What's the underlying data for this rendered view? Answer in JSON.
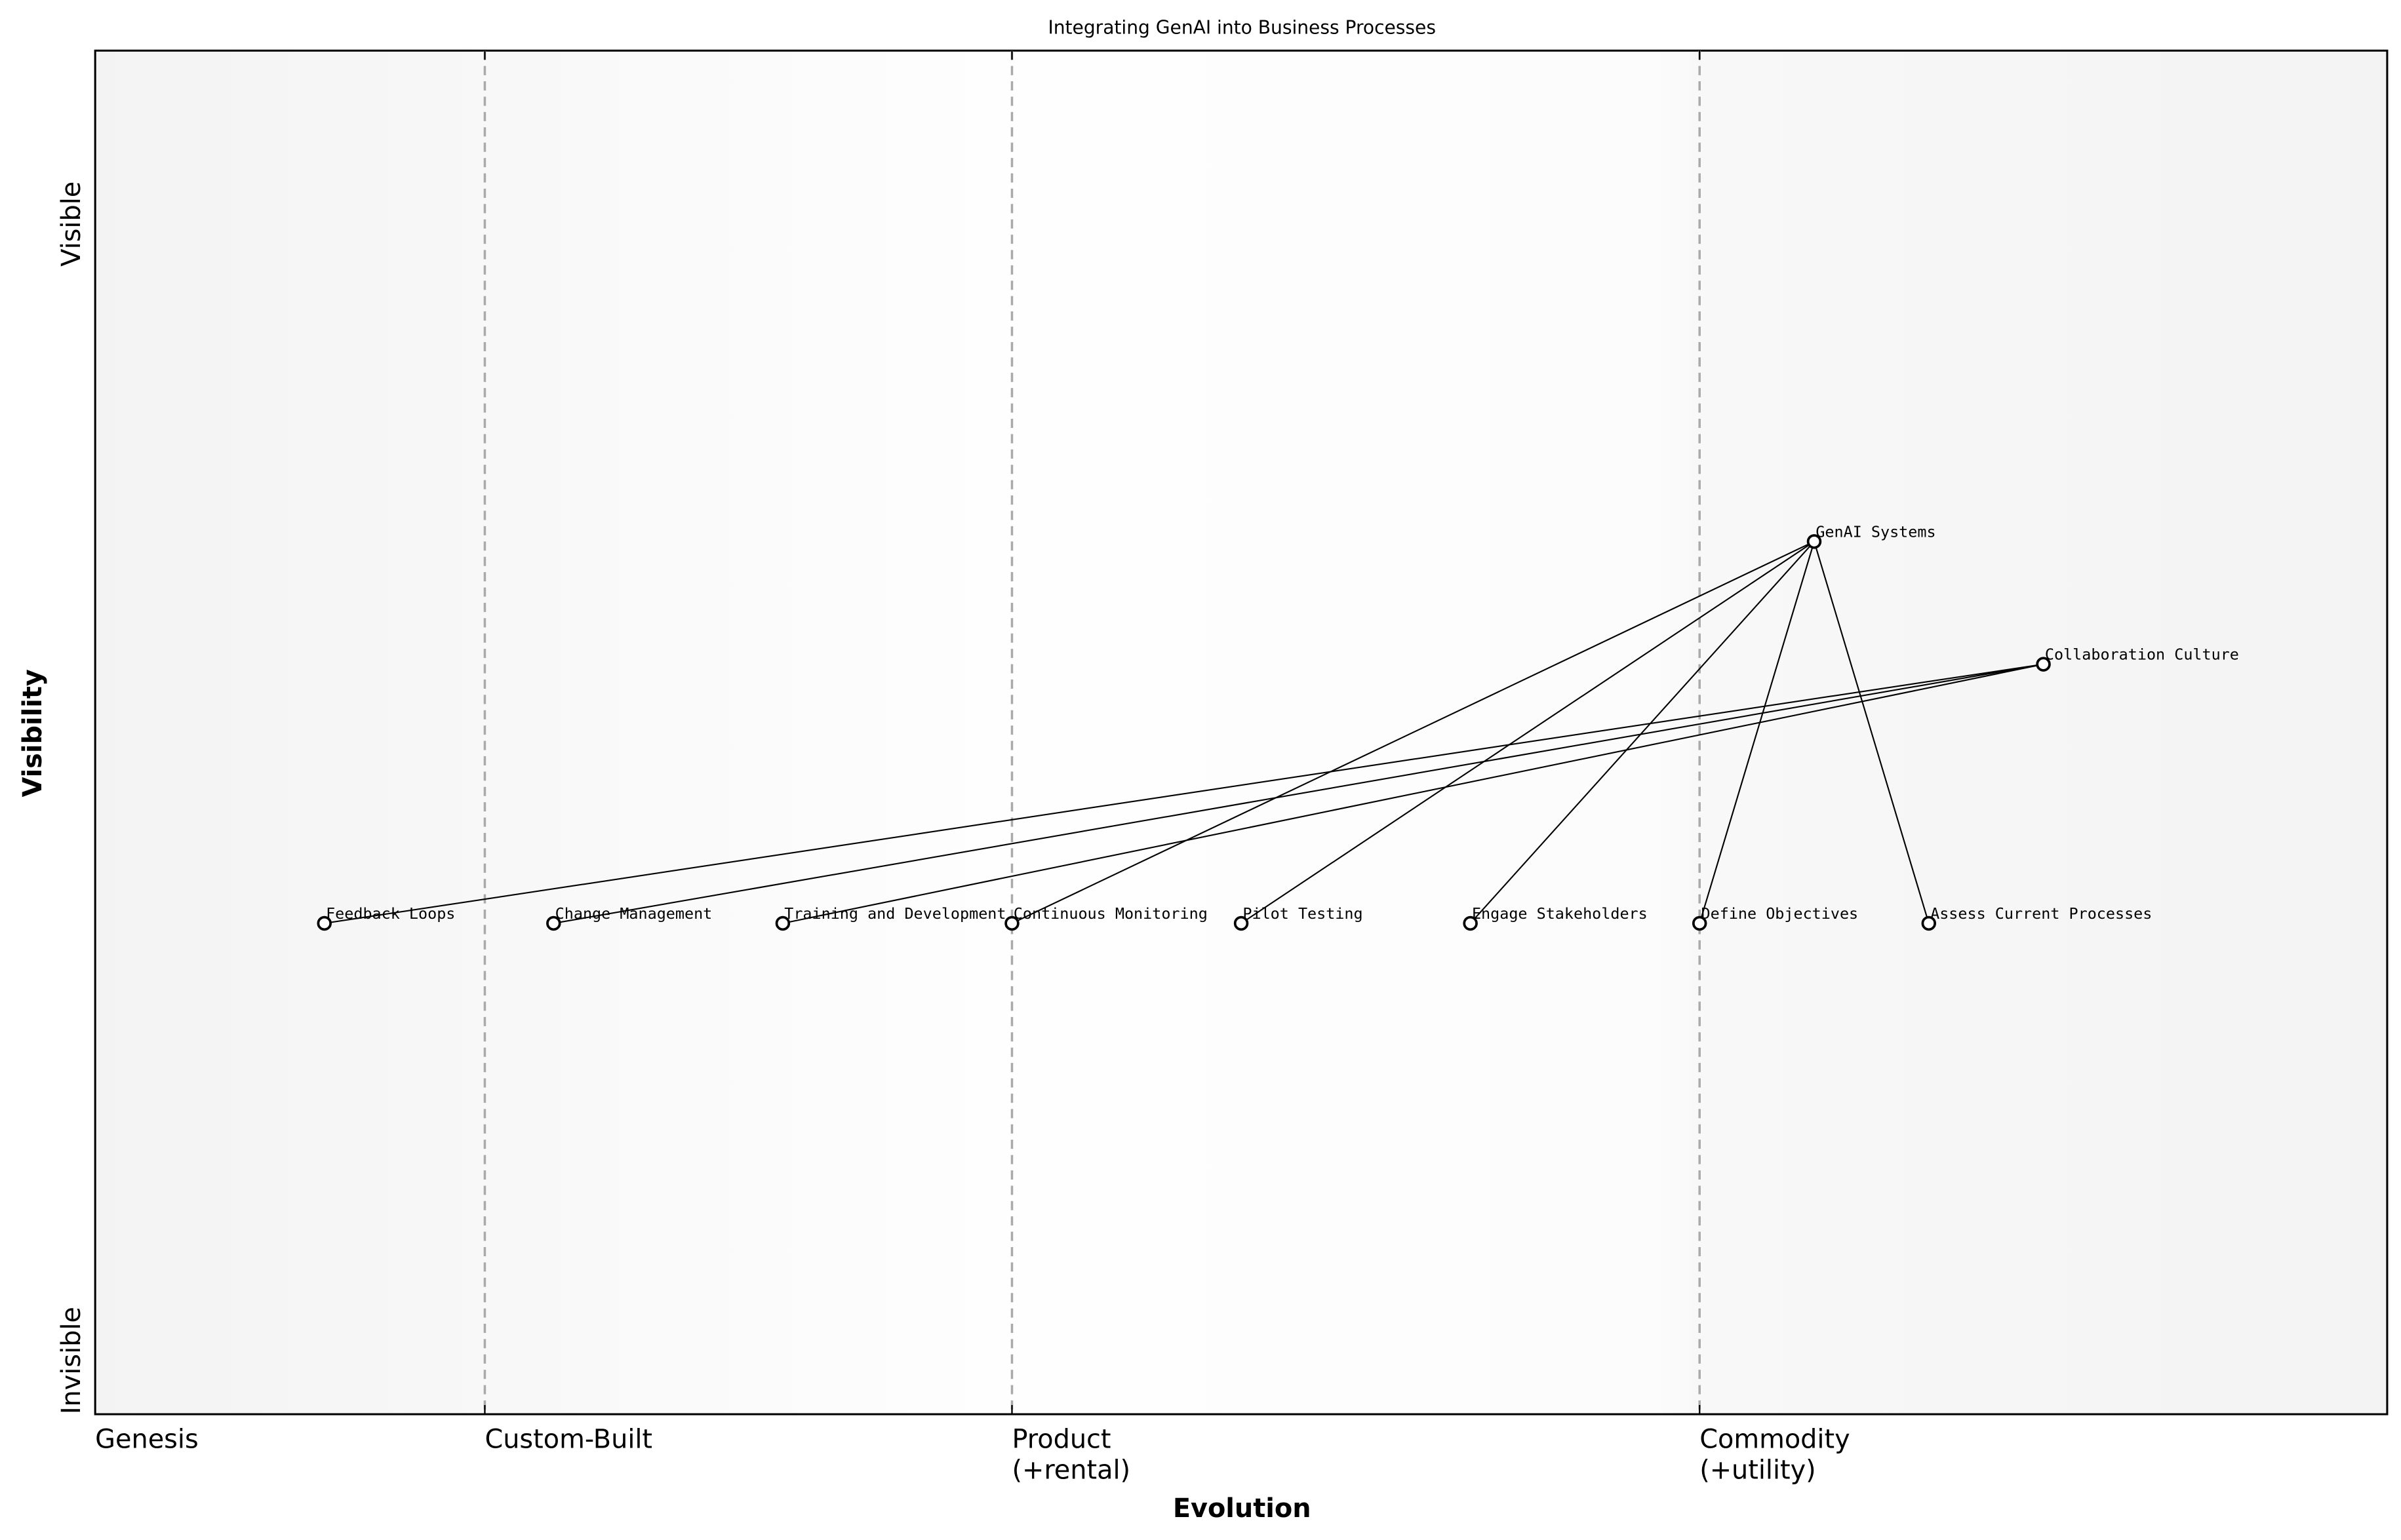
{
  "title": "Integrating GenAI into Business Processes",
  "xlabel": "Evolution",
  "ylabel": "Visibility",
  "y_ticks": [
    "Visible",
    "Invisible"
  ],
  "stages": [
    {
      "label": "Genesis",
      "x": 0.0
    },
    {
      "label": "Custom-Built",
      "x": 0.17
    },
    {
      "label": "Product\n(+rental)",
      "x": 0.4
    },
    {
      "label": "Commodity\n(+utility)",
      "x": 0.7
    }
  ],
  "chart_data": {
    "type": "scatter",
    "xlim": [
      0,
      1
    ],
    "ylim": [
      0,
      1
    ],
    "nodes": [
      {
        "name": "GenAI Systems",
        "evolution": 0.75,
        "visibility": 0.64
      },
      {
        "name": "Collaboration Culture",
        "evolution": 0.85,
        "visibility": 0.55
      },
      {
        "name": "Feedback Loops",
        "evolution": 0.1,
        "visibility": 0.36
      },
      {
        "name": "Change Management",
        "evolution": 0.2,
        "visibility": 0.36
      },
      {
        "name": "Training and Development",
        "evolution": 0.3,
        "visibility": 0.36
      },
      {
        "name": "Continuous Monitoring",
        "evolution": 0.4,
        "visibility": 0.36
      },
      {
        "name": "Pilot Testing",
        "evolution": 0.5,
        "visibility": 0.36
      },
      {
        "name": "Engage Stakeholders",
        "evolution": 0.6,
        "visibility": 0.36
      },
      {
        "name": "Define Objectives",
        "evolution": 0.7,
        "visibility": 0.36
      },
      {
        "name": "Assess Current Processes",
        "evolution": 0.8,
        "visibility": 0.36
      }
    ],
    "links": [
      [
        "GenAI Systems",
        "Continuous Monitoring"
      ],
      [
        "GenAI Systems",
        "Pilot Testing"
      ],
      [
        "GenAI Systems",
        "Engage Stakeholders"
      ],
      [
        "GenAI Systems",
        "Define Objectives"
      ],
      [
        "GenAI Systems",
        "Assess Current Processes"
      ],
      [
        "Collaboration Culture",
        "Feedback Loops"
      ],
      [
        "Collaboration Culture",
        "Change Management"
      ],
      [
        "Collaboration Culture",
        "Training and Development"
      ]
    ]
  }
}
